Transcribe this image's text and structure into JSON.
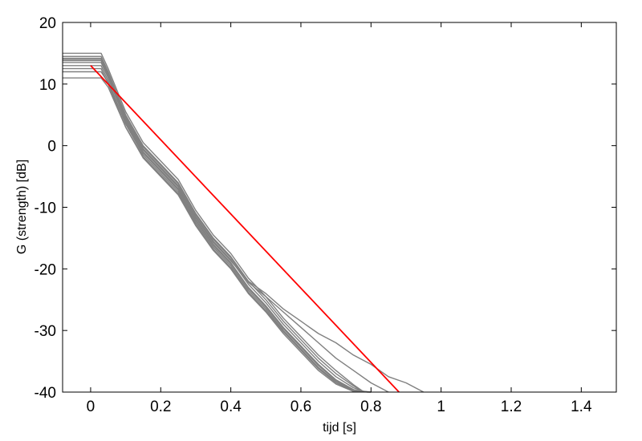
{
  "chart_data": {
    "type": "line",
    "title": "",
    "xlabel": "tijd  [s]",
    "ylabel": "G (strength)  [dB]",
    "xlim": [
      -0.08,
      1.5
    ],
    "ylim": [
      -40,
      20
    ],
    "xticks": [
      0,
      0.2,
      0.4,
      0.6,
      0.8,
      1,
      1.2,
      1.4
    ],
    "xtick_labels": [
      "0",
      "0.2",
      "0.4",
      "0.6",
      "0.8",
      "1",
      "1.2",
      "1.4"
    ],
    "yticks": [
      -40,
      -30,
      -20,
      -10,
      0,
      10,
      20
    ],
    "ytick_labels": [
      "-40",
      "-30",
      "-20",
      "-10",
      "0",
      "10",
      "20"
    ],
    "grid": false,
    "legend": "none",
    "colors": {
      "measured": "#808080",
      "fit": "#ff0000",
      "axes": "#000000"
    },
    "fit_line": {
      "x": [
        0.0,
        0.88
      ],
      "y": [
        13.0,
        -40.0
      ]
    },
    "series": [
      {
        "x": [
          -0.08,
          0.03,
          0.05,
          0.1,
          0.15,
          0.2,
          0.25,
          0.3,
          0.35,
          0.4,
          0.45,
          0.5,
          0.55,
          0.6,
          0.65,
          0.7,
          0.75,
          0.78
        ],
        "y": [
          14.5,
          14.5,
          12,
          5,
          0,
          -3,
          -6,
          -11,
          -15,
          -18,
          -22,
          -25,
          -28.5,
          -31.5,
          -34.5,
          -37,
          -39,
          -40
        ]
      },
      {
        "x": [
          -0.08,
          0.03,
          0.05,
          0.1,
          0.15,
          0.2,
          0.25,
          0.3,
          0.35,
          0.4,
          0.45,
          0.5,
          0.55,
          0.6,
          0.65,
          0.7,
          0.75,
          0.785
        ],
        "y": [
          14,
          14,
          11.5,
          4.5,
          -0.5,
          -3.5,
          -6.5,
          -11.5,
          -15.5,
          -18.5,
          -22.5,
          -25.5,
          -29,
          -32,
          -35,
          -37.5,
          -39.3,
          -40
        ]
      },
      {
        "x": [
          -0.08,
          0.03,
          0.05,
          0.1,
          0.15,
          0.2,
          0.25,
          0.3,
          0.35,
          0.4,
          0.45,
          0.5,
          0.55,
          0.6,
          0.65,
          0.7,
          0.75,
          0.79
        ],
        "y": [
          13.5,
          13.5,
          11,
          4,
          -1,
          -4,
          -7,
          -12,
          -16,
          -19,
          -23,
          -26,
          -29.5,
          -32.5,
          -35.5,
          -38,
          -39.6,
          -40
        ]
      },
      {
        "x": [
          -0.08,
          0.03,
          0.05,
          0.1,
          0.15,
          0.2,
          0.25,
          0.3,
          0.35,
          0.4,
          0.45,
          0.5,
          0.55,
          0.6,
          0.65,
          0.7,
          0.75,
          0.795
        ],
        "y": [
          13,
          13,
          10.5,
          3.5,
          -1.5,
          -4.5,
          -7.5,
          -12.5,
          -16.5,
          -19.5,
          -23.5,
          -26.5,
          -30,
          -33,
          -36,
          -38.3,
          -39.8,
          -40
        ]
      },
      {
        "x": [
          -0.08,
          0.03,
          0.05,
          0.1,
          0.15,
          0.2,
          0.25,
          0.3,
          0.35,
          0.4,
          0.45,
          0.5,
          0.55,
          0.6,
          0.65,
          0.7,
          0.75,
          0.78
        ],
        "y": [
          15,
          15,
          12.5,
          5.5,
          0.5,
          -2.5,
          -5.5,
          -10.5,
          -14.5,
          -17.5,
          -21.5,
          -24.5,
          -28,
          -31,
          -34,
          -36.5,
          -38.8,
          -40
        ]
      },
      {
        "x": [
          -0.08,
          0.03,
          0.05,
          0.1,
          0.15,
          0.2,
          0.25,
          0.3,
          0.35,
          0.4,
          0.45,
          0.5,
          0.55,
          0.6,
          0.65,
          0.7,
          0.75,
          0.8
        ],
        "y": [
          12.5,
          12.5,
          10,
          3,
          -2,
          -5,
          -8,
          -13,
          -17,
          -20,
          -24,
          -27,
          -30.5,
          -33.5,
          -36.5,
          -38.7,
          -39.9,
          -40
        ]
      },
      {
        "x": [
          -0.08,
          0.03,
          0.05,
          0.1,
          0.15,
          0.2,
          0.25,
          0.3,
          0.35,
          0.4,
          0.45,
          0.5,
          0.55,
          0.6,
          0.65,
          0.7,
          0.75,
          0.8,
          0.85
        ],
        "y": [
          14.2,
          14.2,
          11.8,
          4.8,
          -0.2,
          -3.2,
          -6.2,
          -11.2,
          -15.2,
          -18.2,
          -22.2,
          -24.5,
          -27,
          -29.5,
          -32,
          -34.5,
          -36.5,
          -38.5,
          -40
        ]
      },
      {
        "x": [
          -0.08,
          0.03,
          0.05,
          0.1,
          0.15,
          0.2,
          0.25,
          0.3,
          0.35,
          0.4,
          0.45,
          0.5,
          0.55,
          0.6,
          0.65,
          0.7,
          0.75,
          0.8,
          0.85,
          0.9,
          0.95
        ],
        "y": [
          13.8,
          13.8,
          11.3,
          4.3,
          -0.7,
          -3.7,
          -6.7,
          -11.7,
          -15.7,
          -18.7,
          -22,
          -24,
          -26.5,
          -28.5,
          -30.5,
          -32,
          -34,
          -35.5,
          -37.5,
          -38.5,
          -40
        ]
      },
      {
        "x": [
          -0.08,
          0.03,
          0.05,
          0.1,
          0.15,
          0.2,
          0.25,
          0.3,
          0.35,
          0.4,
          0.45,
          0.5,
          0.55,
          0.6,
          0.65,
          0.7,
          0.75,
          0.8
        ],
        "y": [
          11,
          11,
          9.5,
          3,
          -1.8,
          -4.8,
          -7.8,
          -12.8,
          -16.8,
          -19.8,
          -23.8,
          -26.8,
          -30.2,
          -33.2,
          -36.2,
          -38.5,
          -39.8,
          -40
        ]
      },
      {
        "x": [
          -0.08,
          0.03,
          0.05,
          0.1,
          0.15,
          0.2,
          0.25,
          0.3,
          0.35,
          0.4,
          0.45,
          0.5,
          0.55,
          0.6,
          0.65,
          0.7,
          0.75,
          0.8
        ],
        "y": [
          12,
          12,
          10.2,
          3.7,
          -1.2,
          -4.2,
          -7.2,
          -12.2,
          -16.2,
          -19.2,
          -23.2,
          -26.2,
          -29.7,
          -32.7,
          -35.7,
          -38.1,
          -39.7,
          -40
        ]
      }
    ]
  }
}
